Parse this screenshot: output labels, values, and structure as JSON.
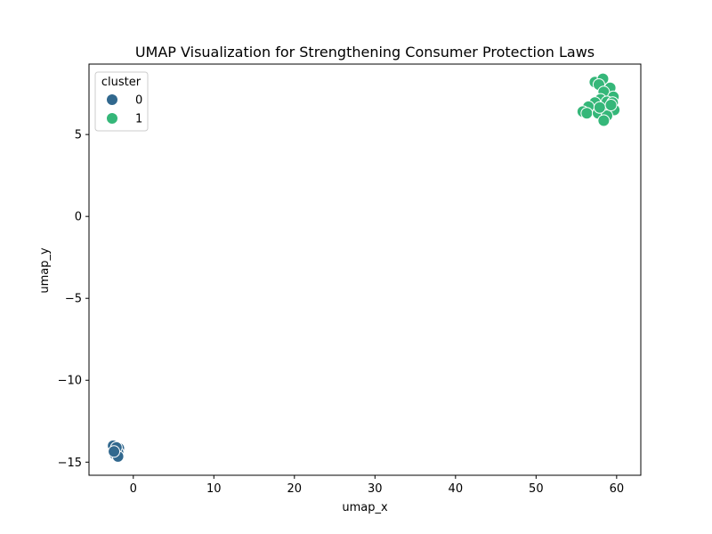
{
  "chart_data": {
    "type": "scatter",
    "title": "UMAP Visualization for Strengthening Consumer Protection Laws",
    "xlabel": "umap_x",
    "ylabel": "umap_y",
    "xlim": [
      -5.5,
      63
    ],
    "ylim": [
      -15.8,
      9.3
    ],
    "xticks": [
      0,
      10,
      20,
      30,
      40,
      50,
      60
    ],
    "yticks": [
      -15,
      -10,
      -5,
      0,
      5
    ],
    "grid": false,
    "legend": {
      "title": "cluster",
      "placement": "top-left"
    },
    "series": [
      {
        "name": "0",
        "color": "#31688e",
        "points": [
          [
            -2.5,
            -14.0
          ],
          [
            -2.1,
            -14.3
          ],
          [
            -1.8,
            -14.15
          ],
          [
            -1.9,
            -14.4
          ],
          [
            -2.3,
            -14.5
          ],
          [
            -1.9,
            -14.65
          ],
          [
            -2.1,
            -14.1
          ],
          [
            -2.4,
            -14.35
          ]
        ]
      },
      {
        "name": "1",
        "color": "#35b779",
        "points": [
          [
            57.3,
            8.2
          ],
          [
            58.3,
            8.4
          ],
          [
            57.8,
            8.05
          ],
          [
            59.2,
            7.85
          ],
          [
            58.4,
            7.6
          ],
          [
            59.6,
            7.3
          ],
          [
            58.0,
            7.15
          ],
          [
            57.3,
            6.95
          ],
          [
            58.8,
            7.0
          ],
          [
            59.5,
            6.95
          ],
          [
            56.5,
            6.7
          ],
          [
            58.9,
            6.45
          ],
          [
            59.7,
            6.5
          ],
          [
            55.8,
            6.4
          ],
          [
            56.3,
            6.3
          ],
          [
            57.7,
            6.3
          ],
          [
            58.8,
            6.15
          ],
          [
            58.4,
            5.85
          ],
          [
            57.9,
            6.65
          ],
          [
            59.3,
            6.8
          ]
        ]
      }
    ]
  }
}
